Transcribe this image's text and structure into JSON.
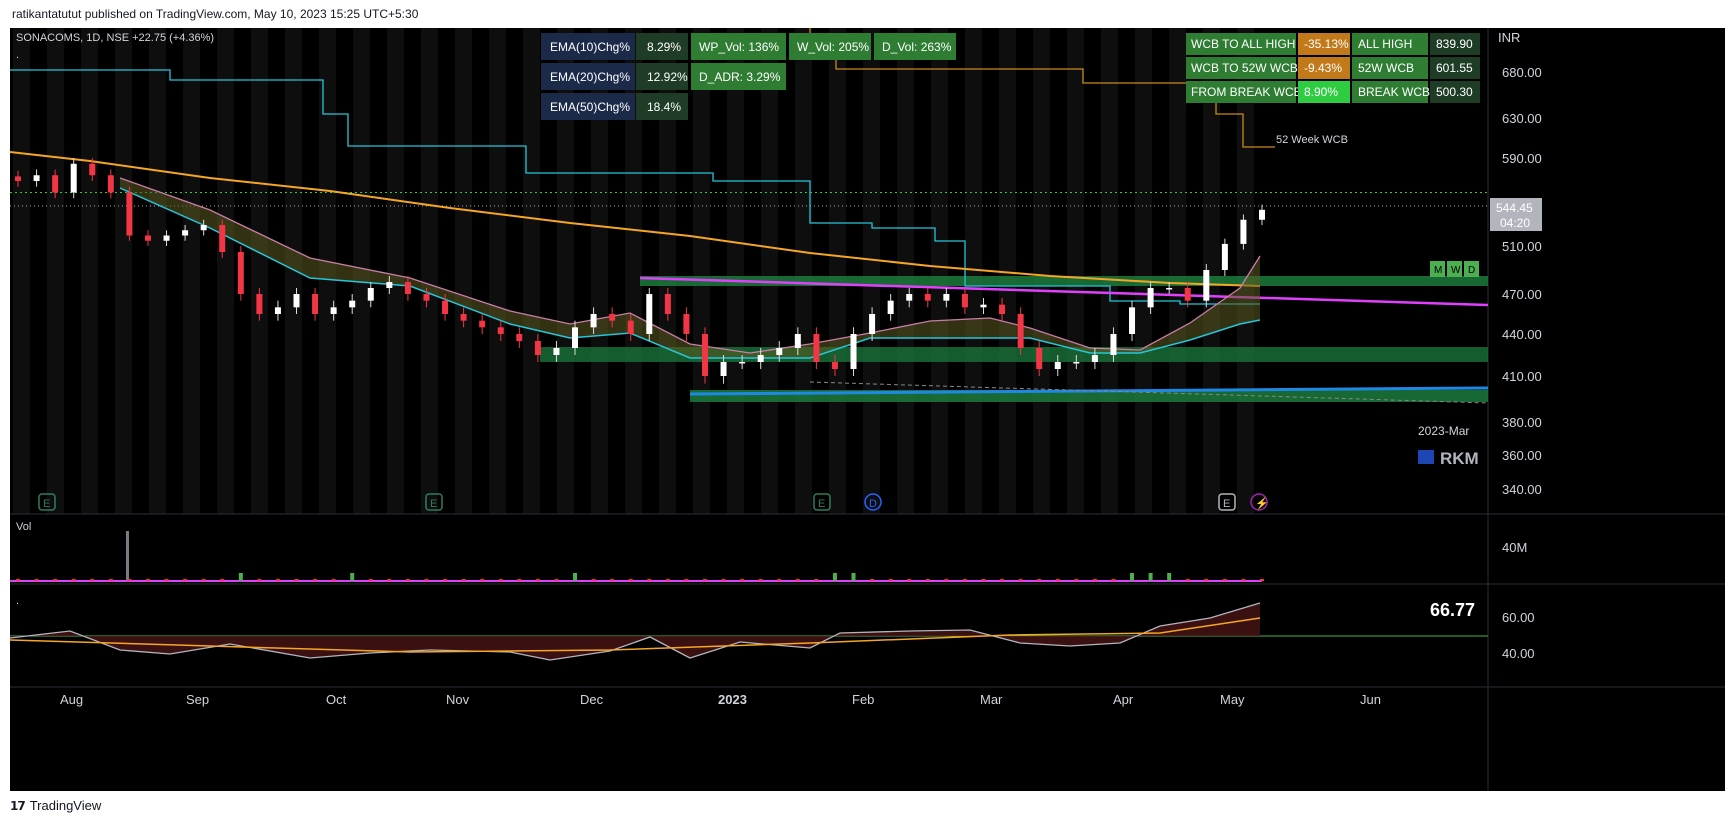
{
  "publish_line": "ratikantatutut published on TradingView.com, May 10, 2023 15:25 UTC+5:30",
  "footer": {
    "brand": "TradingView"
  },
  "legend": {
    "symbol_line": "SONACOMS, 1D, NSE  +22.75 (+4.36%)",
    "sub": "."
  },
  "currency": "INR",
  "price_label": {
    "value": "544.45",
    "countdown": "04:20"
  },
  "mwd_badges": [
    "M",
    "W",
    "D"
  ],
  "labels": {
    "week_wcb": "52 Week WCB",
    "period": "2023-Mar",
    "watermark": "RKM"
  },
  "vol_pane": {
    "title": "Vol",
    "axis_label": "40M"
  },
  "osc_pane": {
    "title": ".",
    "value": "66.77",
    "axis_labels": [
      "60.00",
      "40.00"
    ]
  },
  "stats_left": {
    "rows": [
      {
        "label": "EMA(10)Chg%",
        "value": "8.29%"
      },
      {
        "label": "EMA(20)Chg%",
        "value": "12.92%"
      },
      {
        "label": "EMA(50)Chg%",
        "value": "18.4%"
      }
    ],
    "vol_row": [
      "WP_Vol: 136%",
      "W_Vol: 205%",
      "D_Vol: 263%"
    ],
    "adr": "D_ADR: 3.29%"
  },
  "stats_right": {
    "rows": [
      {
        "label": "WCB TO ALL HIGH",
        "pct": "-35.13%",
        "key": "ALL HIGH",
        "value": "839.90"
      },
      {
        "label": "WCB TO 52W WCB",
        "pct": "-9.43%",
        "key": "52W WCB",
        "value": "601.55"
      },
      {
        "label": "FROM BREAK WCB",
        "pct": "8.90%",
        "key": "BREAK WCB",
        "value": "500.30"
      }
    ]
  },
  "event_markers": [
    "E",
    "E",
    "E",
    "D",
    "E",
    "⚡"
  ],
  "colors": {
    "up": "#ffffff",
    "down": "#f23645",
    "ema200": "#f5a623",
    "ema_fast": "#26c6da",
    "trendline": "#e040fb",
    "zone": "#1b7a3c",
    "osc": "#b2b5be"
  },
  "chart_data": {
    "type": "candlestick",
    "title": "SONACOMS, 1D, NSE",
    "currency": "INR",
    "y_axis_ticks": [
      680,
      630,
      590,
      550,
      510,
      470,
      440,
      410,
      380,
      360,
      340
    ],
    "x_axis_labels": [
      "Aug",
      "Sep",
      "Oct",
      "Nov",
      "Dec",
      "2023",
      "Feb",
      "Mar",
      "Apr",
      "May",
      "Jun"
    ],
    "last_price": 544.45,
    "change": 22.75,
    "change_pct": 4.36,
    "series": [
      {
        "name": "close_approx",
        "values": [
          570,
          575,
          560,
          585,
          575,
          560,
          520,
          515,
          520,
          525,
          530,
          505,
          470,
          455,
          460,
          470,
          455,
          460,
          465,
          475,
          480,
          470,
          465,
          455,
          450,
          445,
          440,
          435,
          425,
          430,
          445,
          455,
          450,
          440,
          470,
          455,
          440,
          410,
          420,
          420,
          425,
          430,
          440,
          420,
          415,
          440,
          455,
          465,
          470,
          465,
          470,
          460,
          462,
          455,
          430,
          415,
          420,
          420,
          425,
          440,
          460,
          475,
          475,
          465,
          490,
          512,
          535,
          544.45
        ]
      },
      {
        "name": "volume_spike",
        "values": [
          40
        ]
      },
      {
        "name": "oscillator_last",
        "values": [
          66.77
        ]
      }
    ],
    "levels": {
      "dotted_resistance": 560,
      "wcb_break": 500.3,
      "week52_wcb": 601.55,
      "all_high": 839.9,
      "support_zone": [
        400,
        410
      ]
    }
  }
}
